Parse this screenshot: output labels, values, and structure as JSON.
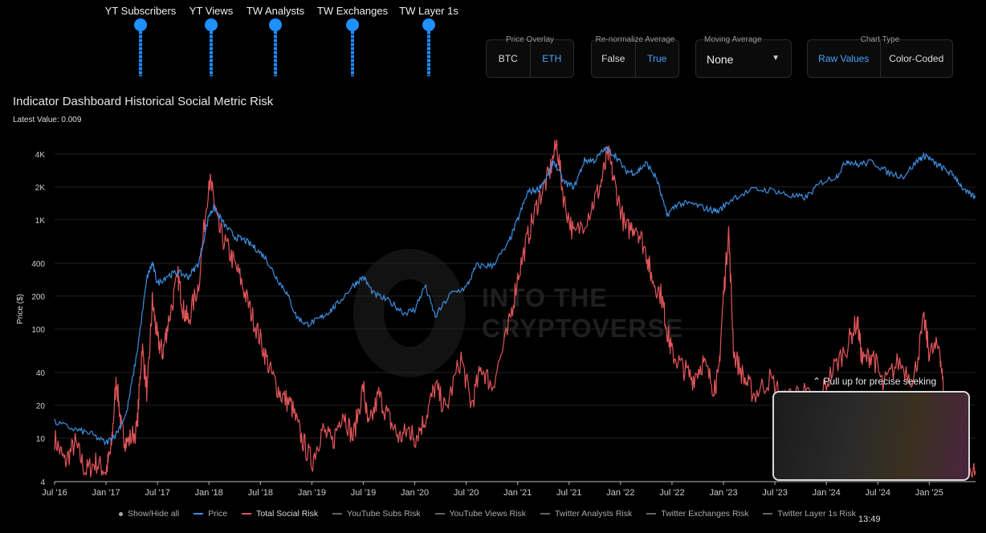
{
  "sliders": [
    {
      "label": "YT Subscribers"
    },
    {
      "label": "YT Views"
    },
    {
      "label": "TW Analysts"
    },
    {
      "label": "TW Exchanges"
    },
    {
      "label": "TW Layer 1s"
    }
  ],
  "controls": {
    "price_overlay": {
      "title": "Price Overlay",
      "options": [
        "BTC",
        "ETH"
      ],
      "selected": "ETH"
    },
    "renormalize": {
      "title": "Re-normalize Average",
      "options": [
        "False",
        "True"
      ],
      "selected": "True"
    },
    "moving_average": {
      "title": "Moving Average",
      "value": "None"
    },
    "chart_type": {
      "title": "Chart Type",
      "options": [
        "Raw Values",
        "Color-Coded"
      ],
      "selected": "Raw Values"
    }
  },
  "header": {
    "title": "Indicator Dashboard Historical Social Metric Risk",
    "latest": "Latest Value: 0.009"
  },
  "watermark": {
    "line1": "INTO THE",
    "line2": "CRYPTOVERSE"
  },
  "minimap": {
    "pull_text": "⌃ Pull up for precise seeking"
  },
  "clock": "13:49",
  "legend": {
    "toggle": "Show/Hide all",
    "items": [
      {
        "label": "Price",
        "color": "#3d8fe0"
      },
      {
        "label": "Total Social Risk",
        "color": "#e0555a"
      },
      {
        "label": "YouTube Subs Risk",
        "color": "#666666"
      },
      {
        "label": "YouTube Views Risk",
        "color": "#666666"
      },
      {
        "label": "Twitter Analysts Risk",
        "color": "#666666"
      },
      {
        "label": "Twitter Exchanges Risk",
        "color": "#666666"
      },
      {
        "label": "Twitter Layer 1s Risk",
        "color": "#666666"
      }
    ]
  },
  "chart_data": {
    "type": "line",
    "title": "Indicator Dashboard Historical Social Metric Risk",
    "ylabel": "Price ($)",
    "yscale": "log",
    "ylim": [
      4,
      6000
    ],
    "yticks": [
      4,
      10,
      20,
      40,
      100,
      200,
      400,
      1000,
      2000,
      4000
    ],
    "ytick_labels": [
      "4",
      "10",
      "20",
      "40",
      "100",
      "200",
      "400",
      "1K",
      "2K",
      "4K"
    ],
    "xlim": [
      2016.5,
      2025.45
    ],
    "xticks": [
      2016.5,
      2017.0,
      2017.5,
      2018.0,
      2018.5,
      2019.0,
      2019.5,
      2020.0,
      2020.5,
      2021.0,
      2021.5,
      2022.0,
      2022.5,
      2023.0,
      2023.5,
      2024.0,
      2024.5,
      2025.0
    ],
    "xtick_labels": [
      "Jul '16",
      "Jan '17",
      "Jul '17",
      "Jan '18",
      "Jul '18",
      "Jan '19",
      "Jul '19",
      "Jan '20",
      "Jul '20",
      "Jan '21",
      "Jul '21",
      "Jan '22",
      "Jul '22",
      "Jan '23",
      "Jul '23",
      "Jan '24",
      "Jul '24",
      "Jan '25"
    ],
    "series": [
      {
        "name": "Price",
        "color": "#3d8fe0",
        "points": [
          [
            2016.5,
            14
          ],
          [
            2016.7,
            12
          ],
          [
            2016.85,
            11
          ],
          [
            2017.0,
            9
          ],
          [
            2017.1,
            11
          ],
          [
            2017.2,
            17
          ],
          [
            2017.3,
            60
          ],
          [
            2017.4,
            300
          ],
          [
            2017.45,
            400
          ],
          [
            2017.5,
            260
          ],
          [
            2017.6,
            310
          ],
          [
            2017.7,
            330
          ],
          [
            2017.8,
            300
          ],
          [
            2017.9,
            400
          ],
          [
            2018.0,
            1100
          ],
          [
            2018.05,
            1300
          ],
          [
            2018.15,
            900
          ],
          [
            2018.25,
            700
          ],
          [
            2018.35,
            650
          ],
          [
            2018.45,
            550
          ],
          [
            2018.55,
            450
          ],
          [
            2018.65,
            300
          ],
          [
            2018.75,
            220
          ],
          [
            2018.85,
            130
          ],
          [
            2018.95,
            110
          ],
          [
            2019.05,
            120
          ],
          [
            2019.15,
            140
          ],
          [
            2019.25,
            170
          ],
          [
            2019.4,
            250
          ],
          [
            2019.5,
            300
          ],
          [
            2019.6,
            210
          ],
          [
            2019.75,
            180
          ],
          [
            2019.9,
            140
          ],
          [
            2020.0,
            150
          ],
          [
            2020.1,
            250
          ],
          [
            2020.2,
            130
          ],
          [
            2020.35,
            210
          ],
          [
            2020.5,
            240
          ],
          [
            2020.6,
            380
          ],
          [
            2020.75,
            380
          ],
          [
            2020.9,
            580
          ],
          [
            2021.0,
            1000
          ],
          [
            2021.1,
            1800
          ],
          [
            2021.2,
            1900
          ],
          [
            2021.3,
            2600
          ],
          [
            2021.35,
            3500
          ],
          [
            2021.45,
            2200
          ],
          [
            2021.55,
            2000
          ],
          [
            2021.65,
            3500
          ],
          [
            2021.75,
            3500
          ],
          [
            2021.85,
            4500
          ],
          [
            2021.95,
            3900
          ],
          [
            2022.05,
            2800
          ],
          [
            2022.15,
            2700
          ],
          [
            2022.25,
            3300
          ],
          [
            2022.35,
            2400
          ],
          [
            2022.45,
            1100
          ],
          [
            2022.55,
            1400
          ],
          [
            2022.7,
            1400
          ],
          [
            2022.85,
            1250
          ],
          [
            2022.95,
            1200
          ],
          [
            2023.1,
            1600
          ],
          [
            2023.3,
            1900
          ],
          [
            2023.5,
            1850
          ],
          [
            2023.65,
            1650
          ],
          [
            2023.8,
            1600
          ],
          [
            2023.95,
            2200
          ],
          [
            2024.1,
            2500
          ],
          [
            2024.2,
            3500
          ],
          [
            2024.3,
            3200
          ],
          [
            2024.45,
            3400
          ],
          [
            2024.6,
            2700
          ],
          [
            2024.75,
            2500
          ],
          [
            2024.9,
            3600
          ],
          [
            2024.97,
            3900
          ],
          [
            2025.05,
            3300
          ],
          [
            2025.15,
            2900
          ],
          [
            2025.25,
            2500
          ],
          [
            2025.35,
            1800
          ],
          [
            2025.45,
            1600
          ]
        ]
      },
      {
        "name": "Total Social Risk",
        "color": "#e0555a",
        "points": [
          [
            2016.5,
            10
          ],
          [
            2016.6,
            6
          ],
          [
            2016.7,
            9
          ],
          [
            2016.8,
            5
          ],
          [
            2016.9,
            6
          ],
          [
            2017.0,
            5
          ],
          [
            2017.05,
            8
          ],
          [
            2017.1,
            35
          ],
          [
            2017.15,
            12
          ],
          [
            2017.2,
            9
          ],
          [
            2017.3,
            12
          ],
          [
            2017.35,
            70
          ],
          [
            2017.4,
            25
          ],
          [
            2017.45,
            180
          ],
          [
            2017.5,
            80
          ],
          [
            2017.55,
            60
          ],
          [
            2017.6,
            110
          ],
          [
            2017.7,
            300
          ],
          [
            2017.75,
            150
          ],
          [
            2017.8,
            120
          ],
          [
            2017.9,
            260
          ],
          [
            2018.0,
            2400
          ],
          [
            2018.05,
            1500
          ],
          [
            2018.1,
            800
          ],
          [
            2018.2,
            500
          ],
          [
            2018.3,
            300
          ],
          [
            2018.4,
            150
          ],
          [
            2018.5,
            80
          ],
          [
            2018.6,
            40
          ],
          [
            2018.7,
            25
          ],
          [
            2018.8,
            20
          ],
          [
            2018.9,
            10
          ],
          [
            2019.0,
            6
          ],
          [
            2019.1,
            12
          ],
          [
            2019.2,
            9
          ],
          [
            2019.3,
            18
          ],
          [
            2019.4,
            10
          ],
          [
            2019.5,
            30
          ],
          [
            2019.55,
            12
          ],
          [
            2019.65,
            25
          ],
          [
            2019.75,
            15
          ],
          [
            2019.85,
            10
          ],
          [
            2019.95,
            12
          ],
          [
            2020.0,
            10
          ],
          [
            2020.1,
            15
          ],
          [
            2020.2,
            30
          ],
          [
            2020.3,
            18
          ],
          [
            2020.45,
            55
          ],
          [
            2020.55,
            20
          ],
          [
            2020.65,
            45
          ],
          [
            2020.75,
            30
          ],
          [
            2020.9,
            90
          ],
          [
            2021.0,
            300
          ],
          [
            2021.1,
            700
          ],
          [
            2021.2,
            1500
          ],
          [
            2021.3,
            2500
          ],
          [
            2021.38,
            5000
          ],
          [
            2021.45,
            1500
          ],
          [
            2021.55,
            700
          ],
          [
            2021.7,
            1200
          ],
          [
            2021.8,
            2000
          ],
          [
            2021.88,
            4000
          ],
          [
            2021.95,
            2000
          ],
          [
            2022.05,
            800
          ],
          [
            2022.15,
            900
          ],
          [
            2022.25,
            500
          ],
          [
            2022.3,
            300
          ],
          [
            2022.4,
            200
          ],
          [
            2022.45,
            100
          ],
          [
            2022.5,
            60
          ],
          [
            2022.6,
            45
          ],
          [
            2022.7,
            35
          ],
          [
            2022.8,
            50
          ],
          [
            2022.9,
            30
          ],
          [
            2022.95,
            35
          ],
          [
            2023.0,
            200
          ],
          [
            2023.05,
            800
          ],
          [
            2023.1,
            60
          ],
          [
            2023.2,
            35
          ],
          [
            2023.3,
            25
          ],
          [
            2023.45,
            35
          ],
          [
            2023.6,
            22
          ],
          [
            2023.75,
            28
          ],
          [
            2023.9,
            20
          ],
          [
            2024.05,
            40
          ],
          [
            2024.2,
            70
          ],
          [
            2024.3,
            120
          ],
          [
            2024.35,
            50
          ],
          [
            2024.45,
            60
          ],
          [
            2024.55,
            30
          ],
          [
            2024.7,
            50
          ],
          [
            2024.85,
            35
          ],
          [
            2024.95,
            120
          ],
          [
            2025.0,
            60
          ],
          [
            2025.1,
            70
          ],
          [
            2025.15,
            20
          ],
          [
            2025.25,
            15
          ],
          [
            2025.35,
            6
          ],
          [
            2025.45,
            5
          ]
        ]
      }
    ]
  }
}
